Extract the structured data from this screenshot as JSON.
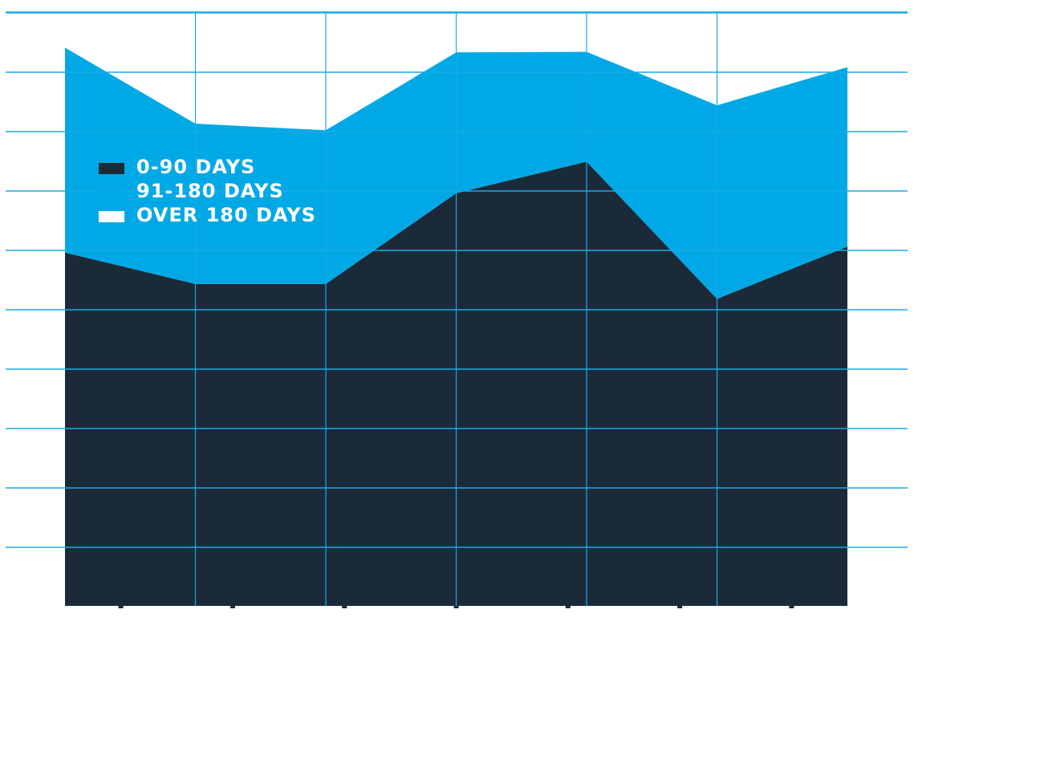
{
  "chart_data": {
    "type": "area",
    "stacked": true,
    "title": "",
    "xlabel": "",
    "ylabel": "",
    "ylim": [
      0,
      10
    ],
    "grid": true,
    "legend_position": "upper-left inside plot",
    "x": [
      1,
      2,
      3,
      4,
      5,
      6,
      7
    ],
    "series": [
      {
        "name": "0-90 DAYS",
        "color": "#1b2a39",
        "values": [
          5.95,
          5.42,
          5.42,
          6.95,
          7.48,
          5.17,
          6.05
        ]
      },
      {
        "name": "91-180 DAYS",
        "color": "#00a9e6",
        "values": [
          3.45,
          2.7,
          2.59,
          2.37,
          1.85,
          3.26,
          3.02
        ]
      },
      {
        "name": "OVER 180 DAYS",
        "color": "#ffffff",
        "values": [
          0,
          0,
          0,
          0,
          0,
          0,
          0
        ]
      }
    ],
    "colors": {
      "gridline": "#1aa9e6",
      "legend_text": "#ffffff"
    }
  }
}
